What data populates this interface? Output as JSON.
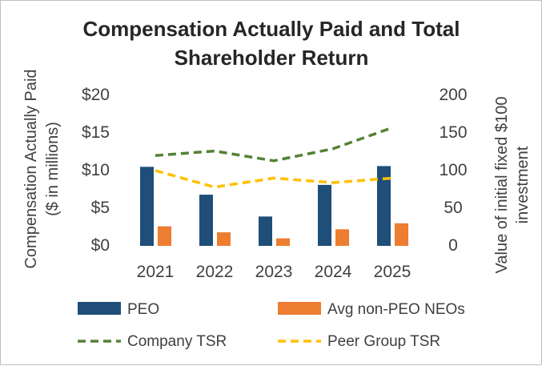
{
  "chart_data": {
    "type": "bar",
    "title_line1": "Compensation Actually Paid and Total",
    "title_line2": "Shareholder Return",
    "categories": [
      "2021",
      "2022",
      "2023",
      "2024",
      "2025"
    ],
    "ylabel_line1": "Compensation Actually Paid",
    "ylabel_line2": "($ in millions)",
    "y2label_line1": "Value of initial fixed $100",
    "y2label_line2": "investment",
    "ylim": [
      0,
      20
    ],
    "y2lim": [
      0,
      200
    ],
    "y_ticks": [
      "$0",
      "$5",
      "$10",
      "$15",
      "$20"
    ],
    "y2_ticks": [
      "0",
      "50",
      "100",
      "150",
      "200"
    ],
    "series": [
      {
        "name": "PEO",
        "type": "bar",
        "axis": "left",
        "color": "#1f4e79",
        "values": [
          10.5,
          6.8,
          3.9,
          8.1,
          10.6
        ]
      },
      {
        "name": "Avg non-PEO NEOs",
        "type": "bar",
        "axis": "left",
        "color": "#ed7d31",
        "values": [
          2.6,
          1.8,
          1.0,
          2.2,
          3.0
        ]
      },
      {
        "name": "Company TSR",
        "type": "line",
        "style": "dashed",
        "axis": "right",
        "color": "#548235",
        "values": [
          120,
          126,
          113,
          129,
          157
        ]
      },
      {
        "name": "Peer Group TSR",
        "type": "line",
        "style": "dashed",
        "axis": "right",
        "color": "#ffc000",
        "values": [
          100,
          78,
          90,
          84,
          90
        ]
      }
    ]
  }
}
